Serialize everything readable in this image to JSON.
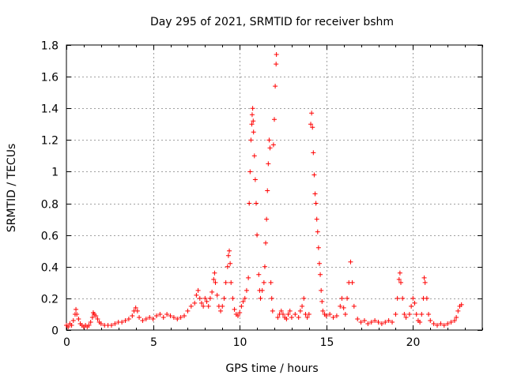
{
  "chart_data": {
    "type": "scatter",
    "title": "Day 295 of 2021, SRMTID for receiver bshm",
    "xlabel": "GPS time / hours",
    "ylabel": "SRMTID / TECUs",
    "xlim": [
      0,
      24
    ],
    "ylim": [
      0,
      1.8
    ],
    "xticks": [
      0,
      5,
      10,
      15,
      20
    ],
    "xtick_labels": [
      "0",
      "5",
      "10",
      "15",
      "20"
    ],
    "yticks": [
      0,
      0.2,
      0.4,
      0.6,
      0.8,
      1.0,
      1.2,
      1.4,
      1.6,
      1.8
    ],
    "ytick_labels": [
      "0",
      "0.2",
      "0.4",
      "0.6",
      "0.8",
      "1",
      "1.2",
      "1.4",
      "1.6",
      "1.8"
    ],
    "grid": true,
    "marker": "+",
    "color": "#ff0000",
    "series": [
      {
        "name": "SRMTID",
        "points": [
          [
            0.0,
            0.03
          ],
          [
            0.1,
            0.02
          ],
          [
            0.2,
            0.04
          ],
          [
            0.3,
            0.03
          ],
          [
            0.4,
            0.06
          ],
          [
            0.5,
            0.1
          ],
          [
            0.55,
            0.13
          ],
          [
            0.6,
            0.1
          ],
          [
            0.7,
            0.07
          ],
          [
            0.8,
            0.04
          ],
          [
            0.9,
            0.03
          ],
          [
            1.0,
            0.02
          ],
          [
            1.1,
            0.03
          ],
          [
            1.2,
            0.02
          ],
          [
            1.3,
            0.03
          ],
          [
            1.4,
            0.05
          ],
          [
            1.5,
            0.08
          ],
          [
            1.55,
            0.11
          ],
          [
            1.6,
            0.1
          ],
          [
            1.7,
            0.09
          ],
          [
            1.8,
            0.07
          ],
          [
            1.9,
            0.05
          ],
          [
            2.0,
            0.04
          ],
          [
            2.2,
            0.03
          ],
          [
            2.4,
            0.03
          ],
          [
            2.6,
            0.03
          ],
          [
            2.8,
            0.04
          ],
          [
            3.0,
            0.05
          ],
          [
            3.2,
            0.05
          ],
          [
            3.4,
            0.06
          ],
          [
            3.6,
            0.07
          ],
          [
            3.8,
            0.09
          ],
          [
            3.9,
            0.12
          ],
          [
            4.0,
            0.14
          ],
          [
            4.1,
            0.12
          ],
          [
            4.2,
            0.08
          ],
          [
            4.4,
            0.06
          ],
          [
            4.6,
            0.07
          ],
          [
            4.8,
            0.08
          ],
          [
            5.0,
            0.07
          ],
          [
            5.2,
            0.09
          ],
          [
            5.4,
            0.1
          ],
          [
            5.6,
            0.08
          ],
          [
            5.8,
            0.1
          ],
          [
            6.0,
            0.09
          ],
          [
            6.2,
            0.08
          ],
          [
            6.4,
            0.07
          ],
          [
            6.6,
            0.08
          ],
          [
            6.8,
            0.09
          ],
          [
            7.0,
            0.12
          ],
          [
            7.2,
            0.15
          ],
          [
            7.4,
            0.17
          ],
          [
            7.5,
            0.22
          ],
          [
            7.6,
            0.25
          ],
          [
            7.7,
            0.2
          ],
          [
            7.8,
            0.17
          ],
          [
            7.9,
            0.15
          ],
          [
            8.0,
            0.2
          ],
          [
            8.1,
            0.18
          ],
          [
            8.2,
            0.15
          ],
          [
            8.3,
            0.2
          ],
          [
            8.4,
            0.24
          ],
          [
            8.5,
            0.32
          ],
          [
            8.55,
            0.36
          ],
          [
            8.6,
            0.3
          ],
          [
            8.7,
            0.22
          ],
          [
            8.8,
            0.15
          ],
          [
            8.9,
            0.12
          ],
          [
            9.0,
            0.15
          ],
          [
            9.1,
            0.2
          ],
          [
            9.2,
            0.3
          ],
          [
            9.3,
            0.4
          ],
          [
            9.35,
            0.47
          ],
          [
            9.4,
            0.5
          ],
          [
            9.45,
            0.42
          ],
          [
            9.5,
            0.3
          ],
          [
            9.6,
            0.2
          ],
          [
            9.7,
            0.13
          ],
          [
            9.8,
            0.1
          ],
          [
            9.9,
            0.09
          ],
          [
            10.0,
            0.11
          ],
          [
            10.1,
            0.15
          ],
          [
            10.2,
            0.18
          ],
          [
            10.3,
            0.2
          ],
          [
            10.4,
            0.25
          ],
          [
            10.5,
            0.33
          ],
          [
            10.55,
            0.8
          ],
          [
            10.6,
            1.0
          ],
          [
            10.65,
            1.2
          ],
          [
            10.7,
            1.3
          ],
          [
            10.72,
            1.36
          ],
          [
            10.75,
            1.4
          ],
          [
            10.78,
            1.32
          ],
          [
            10.8,
            1.25
          ],
          [
            10.85,
            1.1
          ],
          [
            10.9,
            0.95
          ],
          [
            10.95,
            0.8
          ],
          [
            11.0,
            0.6
          ],
          [
            11.1,
            0.35
          ],
          [
            11.15,
            0.25
          ],
          [
            11.2,
            0.2
          ],
          [
            11.3,
            0.25
          ],
          [
            11.4,
            0.3
          ],
          [
            11.45,
            0.4
          ],
          [
            11.5,
            0.55
          ],
          [
            11.55,
            0.7
          ],
          [
            11.6,
            0.88
          ],
          [
            11.65,
            1.05
          ],
          [
            11.7,
            1.2
          ],
          [
            11.75,
            1.15
          ],
          [
            11.8,
            0.3
          ],
          [
            11.85,
            0.2
          ],
          [
            11.9,
            0.12
          ],
          [
            11.95,
            1.17
          ],
          [
            12.0,
            1.33
          ],
          [
            12.05,
            1.54
          ],
          [
            12.1,
            1.68
          ],
          [
            12.12,
            1.74
          ],
          [
            12.2,
            0.08
          ],
          [
            12.3,
            0.1
          ],
          [
            12.4,
            0.12
          ],
          [
            12.5,
            0.1
          ],
          [
            12.6,
            0.08
          ],
          [
            12.7,
            0.07
          ],
          [
            12.8,
            0.1
          ],
          [
            12.9,
            0.12
          ],
          [
            13.0,
            0.08
          ],
          [
            13.2,
            0.1
          ],
          [
            13.4,
            0.08
          ],
          [
            13.5,
            0.12
          ],
          [
            13.6,
            0.15
          ],
          [
            13.7,
            0.2
          ],
          [
            13.8,
            0.1
          ],
          [
            13.9,
            0.08
          ],
          [
            14.0,
            0.1
          ],
          [
            14.1,
            1.3
          ],
          [
            14.15,
            1.37
          ],
          [
            14.2,
            1.28
          ],
          [
            14.25,
            1.12
          ],
          [
            14.3,
            0.98
          ],
          [
            14.35,
            0.86
          ],
          [
            14.4,
            0.8
          ],
          [
            14.45,
            0.7
          ],
          [
            14.5,
            0.62
          ],
          [
            14.55,
            0.52
          ],
          [
            14.6,
            0.42
          ],
          [
            14.65,
            0.35
          ],
          [
            14.7,
            0.25
          ],
          [
            14.75,
            0.18
          ],
          [
            14.8,
            0.12
          ],
          [
            14.9,
            0.1
          ],
          [
            15.0,
            0.09
          ],
          [
            15.2,
            0.1
          ],
          [
            15.4,
            0.08
          ],
          [
            15.6,
            0.09
          ],
          [
            15.8,
            0.15
          ],
          [
            15.9,
            0.2
          ],
          [
            16.0,
            0.14
          ],
          [
            16.1,
            0.1
          ],
          [
            16.2,
            0.2
          ],
          [
            16.3,
            0.3
          ],
          [
            16.4,
            0.43
          ],
          [
            16.5,
            0.3
          ],
          [
            16.6,
            0.15
          ],
          [
            16.8,
            0.07
          ],
          [
            17.0,
            0.05
          ],
          [
            17.2,
            0.06
          ],
          [
            17.4,
            0.04
          ],
          [
            17.6,
            0.05
          ],
          [
            17.8,
            0.06
          ],
          [
            18.0,
            0.05
          ],
          [
            18.2,
            0.04
          ],
          [
            18.4,
            0.05
          ],
          [
            18.6,
            0.06
          ],
          [
            18.8,
            0.05
          ],
          [
            19.0,
            0.1
          ],
          [
            19.1,
            0.2
          ],
          [
            19.2,
            0.32
          ],
          [
            19.25,
            0.36
          ],
          [
            19.3,
            0.3
          ],
          [
            19.4,
            0.2
          ],
          [
            19.5,
            0.1
          ],
          [
            19.6,
            0.08
          ],
          [
            19.8,
            0.1
          ],
          [
            19.9,
            0.15
          ],
          [
            20.0,
            0.2
          ],
          [
            20.1,
            0.17
          ],
          [
            20.2,
            0.1
          ],
          [
            20.3,
            0.06
          ],
          [
            20.4,
            0.05
          ],
          [
            20.5,
            0.1
          ],
          [
            20.6,
            0.2
          ],
          [
            20.65,
            0.33
          ],
          [
            20.7,
            0.3
          ],
          [
            20.8,
            0.2
          ],
          [
            20.9,
            0.1
          ],
          [
            21.0,
            0.06
          ],
          [
            21.2,
            0.04
          ],
          [
            21.4,
            0.03
          ],
          [
            21.6,
            0.04
          ],
          [
            21.8,
            0.03
          ],
          [
            22.0,
            0.04
          ],
          [
            22.2,
            0.05
          ],
          [
            22.4,
            0.06
          ],
          [
            22.5,
            0.08
          ],
          [
            22.6,
            0.12
          ],
          [
            22.7,
            0.15
          ],
          [
            22.8,
            0.16
          ]
        ]
      }
    ]
  }
}
